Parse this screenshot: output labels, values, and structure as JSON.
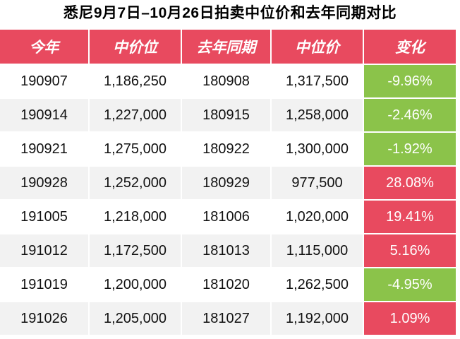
{
  "title": "悉尼9月7日–10月26日拍卖中位价和去年同期对比",
  "headers": [
    "今年",
    "中价位",
    "去年同期",
    "中位价",
    "变化"
  ],
  "rows": [
    {
      "this_year": "190907",
      "median": "1,186,250",
      "last_year": "180908",
      "last_median": "1,317,500",
      "change": "-9.96%",
      "direction": "down"
    },
    {
      "this_year": "190914",
      "median": "1,227,000",
      "last_year": "180915",
      "last_median": "1,258,000",
      "change": "-2.46%",
      "direction": "down"
    },
    {
      "this_year": "190921",
      "median": "1,275,000",
      "last_year": "180922",
      "last_median": "1,300,000",
      "change": "-1.92%",
      "direction": "down"
    },
    {
      "this_year": "190928",
      "median": "1,252,000",
      "last_year": "180929",
      "last_median": "977,500",
      "change": "28.08%",
      "direction": "up"
    },
    {
      "this_year": "191005",
      "median": "1,218,000",
      "last_year": "181006",
      "last_median": "1,020,000",
      "change": "19.41%",
      "direction": "up"
    },
    {
      "this_year": "191012",
      "median": "1,172,500",
      "last_year": "181013",
      "last_median": "1,115,000",
      "change": "5.16%",
      "direction": "up"
    },
    {
      "this_year": "191019",
      "median": "1,200,000",
      "last_year": "181020",
      "last_median": "1,262,500",
      "change": "-4.95%",
      "direction": "down"
    },
    {
      "this_year": "191026",
      "median": "1,205,000",
      "last_year": "181027",
      "last_median": "1,192,000",
      "change": "1.09%",
      "direction": "up"
    }
  ],
  "colors": {
    "header": "#e84a5f",
    "up": "#e84a5f",
    "down": "#8bc34a",
    "alt_row": "#f2f2f2"
  }
}
